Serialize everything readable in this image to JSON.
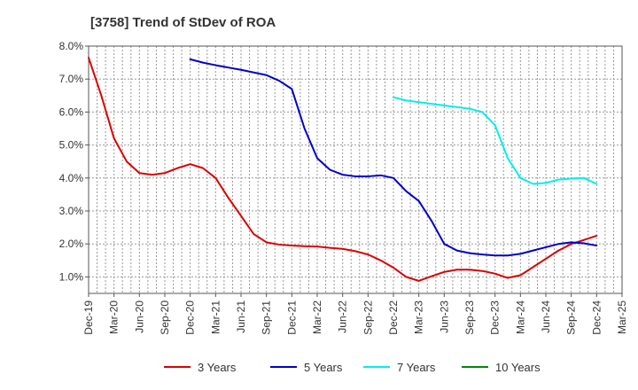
{
  "chart_data": {
    "type": "line",
    "title": "[3758]  Trend of StDev of ROA",
    "xlabel": "",
    "ylabel": "",
    "ylim": [
      0.5,
      8.0
    ],
    "y_ticks": [
      "1.0%",
      "2.0%",
      "3.0%",
      "4.0%",
      "5.0%",
      "6.0%",
      "7.0%",
      "8.0%"
    ],
    "y_tick_values": [
      1,
      2,
      3,
      4,
      5,
      6,
      7,
      8
    ],
    "x_ticks": [
      "Dec-19",
      "Mar-20",
      "Jun-20",
      "Sep-20",
      "Dec-20",
      "Mar-21",
      "Jun-21",
      "Sep-21",
      "Dec-21",
      "Mar-22",
      "Jun-22",
      "Sep-22",
      "Dec-22",
      "Mar-23",
      "Jun-23",
      "Sep-23",
      "Dec-23",
      "Mar-24",
      "Jun-24",
      "Sep-24",
      "Dec-24",
      "Mar-25"
    ],
    "grid": true,
    "legend_position": "bottom",
    "series": [
      {
        "name": "3 Years",
        "color": "#dd0000",
        "x": [
          0,
          0.5,
          1,
          1.5,
          2,
          2.5,
          3,
          3.5,
          4,
          4.5,
          5,
          5.5,
          6,
          6.5,
          7,
          7.5,
          8,
          8.5,
          9,
          9.5,
          10,
          10.5,
          11,
          11.5,
          12,
          12.5,
          13,
          13.5,
          14,
          14.5,
          15,
          15.5,
          16,
          16.5,
          17,
          17.5,
          18,
          18.5,
          19,
          19.5,
          20
        ],
        "values": [
          7.65,
          6.5,
          5.2,
          4.5,
          4.15,
          4.1,
          4.15,
          4.3,
          4.42,
          4.3,
          4.0,
          3.4,
          2.85,
          2.3,
          2.05,
          1.98,
          1.95,
          1.93,
          1.92,
          1.88,
          1.85,
          1.78,
          1.68,
          1.5,
          1.28,
          1.0,
          0.88,
          1.02,
          1.15,
          1.22,
          1.22,
          1.18,
          1.1,
          0.97,
          1.05,
          1.3,
          1.55,
          1.8,
          2.0,
          2.12,
          2.25
        ]
      },
      {
        "name": "5 Years",
        "color": "#0000cc",
        "x": [
          4,
          4.5,
          5,
          5.5,
          6,
          6.5,
          7,
          7.5,
          8,
          8.5,
          9,
          9.5,
          10,
          10.5,
          11,
          11.5,
          12,
          12.5,
          13,
          13.5,
          14,
          14.5,
          15,
          15.5,
          16,
          16.5,
          17,
          17.5,
          18,
          18.5,
          19,
          19.5,
          20
        ],
        "values": [
          7.6,
          7.5,
          7.42,
          7.35,
          7.28,
          7.2,
          7.12,
          6.95,
          6.7,
          5.5,
          4.6,
          4.25,
          4.1,
          4.05,
          4.05,
          4.08,
          4.0,
          3.6,
          3.3,
          2.7,
          2.0,
          1.8,
          1.72,
          1.68,
          1.65,
          1.65,
          1.7,
          1.8,
          1.9,
          2.0,
          2.05,
          2.02,
          1.95
        ]
      },
      {
        "name": "7 Years",
        "color": "#00eeee",
        "x": [
          12,
          12.5,
          13,
          13.5,
          14,
          14.5,
          15,
          15.5,
          16,
          16.5,
          17,
          17.5,
          18,
          18.5,
          19,
          19.5,
          20
        ],
        "values": [
          6.45,
          6.35,
          6.3,
          6.25,
          6.2,
          6.15,
          6.1,
          6.0,
          5.6,
          4.6,
          4.0,
          3.82,
          3.85,
          3.95,
          3.98,
          4.0,
          3.82
        ]
      },
      {
        "name": "10 Years",
        "color": "#008800",
        "x": [],
        "values": []
      }
    ]
  }
}
